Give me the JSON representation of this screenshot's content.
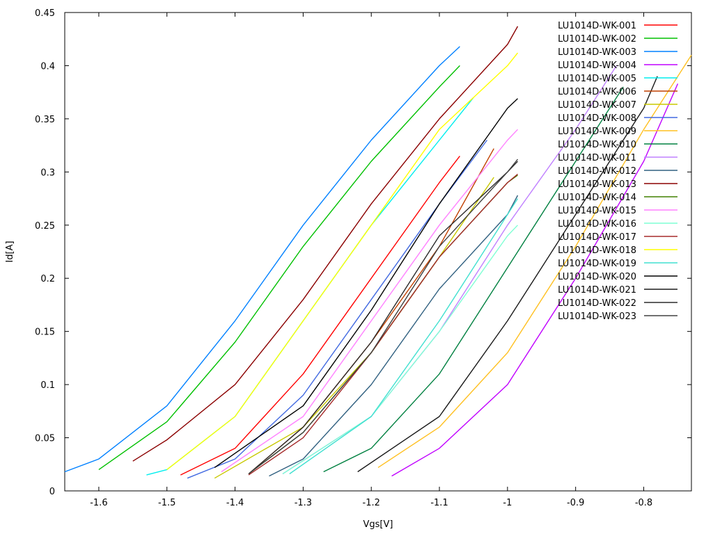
{
  "chart_data": {
    "type": "line",
    "title": "",
    "xlabel": "Vgs[V]",
    "ylabel": "Id[A]",
    "xlim": [
      -1.65,
      -0.73
    ],
    "ylim": [
      0,
      0.45
    ],
    "x_ticks": [
      {
        "value": -1.6,
        "label": "-1.6"
      },
      {
        "value": -1.5,
        "label": "-1.5"
      },
      {
        "value": -1.4,
        "label": "-1.4"
      },
      {
        "value": -1.3,
        "label": "-1.3"
      },
      {
        "value": -1.2,
        "label": "-1.2"
      },
      {
        "value": -1.1,
        "label": "-1.1"
      },
      {
        "value": -1.0,
        "label": "-1"
      },
      {
        "value": -0.9,
        "label": "-0.9"
      },
      {
        "value": -0.8,
        "label": "-0.8"
      }
    ],
    "y_ticks": [
      {
        "value": 0,
        "label": "0"
      },
      {
        "value": 0.05,
        "label": "0.05"
      },
      {
        "value": 0.1,
        "label": "0.1"
      },
      {
        "value": 0.15,
        "label": "0.15"
      },
      {
        "value": 0.2,
        "label": "0.2"
      },
      {
        "value": 0.25,
        "label": "0.25"
      },
      {
        "value": 0.3,
        "label": "0.3"
      },
      {
        "value": 0.35,
        "label": "0.35"
      },
      {
        "value": 0.4,
        "label": "0.4"
      },
      {
        "value": 0.45,
        "label": "0.45"
      }
    ],
    "grid": false,
    "legend_position": "top-right",
    "series": [
      {
        "name": "LU1014D-WK-001",
        "color": "#ff0000",
        "points": [
          [
            -1.48,
            0.015
          ],
          [
            -1.4,
            0.04
          ],
          [
            -1.3,
            0.11
          ],
          [
            -1.2,
            0.2
          ],
          [
            -1.1,
            0.29
          ],
          [
            -1.07,
            0.315
          ]
        ]
      },
      {
        "name": "LU1014D-WK-002",
        "color": "#00c000",
        "points": [
          [
            -1.6,
            0.02
          ],
          [
            -1.5,
            0.065
          ],
          [
            -1.4,
            0.14
          ],
          [
            -1.3,
            0.23
          ],
          [
            -1.2,
            0.31
          ],
          [
            -1.1,
            0.38
          ],
          [
            -1.07,
            0.4
          ]
        ]
      },
      {
        "name": "LU1014D-WK-003",
        "color": "#0080ff",
        "points": [
          [
            -1.65,
            0.018
          ],
          [
            -1.6,
            0.03
          ],
          [
            -1.5,
            0.08
          ],
          [
            -1.4,
            0.16
          ],
          [
            -1.3,
            0.25
          ],
          [
            -1.2,
            0.33
          ],
          [
            -1.1,
            0.4
          ],
          [
            -1.07,
            0.418
          ]
        ]
      },
      {
        "name": "LU1014D-WK-004",
        "color": "#c000ff",
        "points": [
          [
            -1.17,
            0.014
          ],
          [
            -1.1,
            0.04
          ],
          [
            -1.0,
            0.1
          ],
          [
            -0.9,
            0.2
          ],
          [
            -0.8,
            0.31
          ],
          [
            -0.75,
            0.383
          ]
        ]
      },
      {
        "name": "LU1014D-WK-005",
        "color": "#00eeee",
        "points": [
          [
            -1.53,
            0.015
          ],
          [
            -1.5,
            0.02
          ],
          [
            -1.4,
            0.07
          ],
          [
            -1.3,
            0.16
          ],
          [
            -1.2,
            0.25
          ],
          [
            -1.1,
            0.33
          ],
          [
            -1.05,
            0.37
          ]
        ]
      },
      {
        "name": "LU1014D-WK-006",
        "color": "#c04000",
        "points": [
          [
            -1.38,
            0.016
          ],
          [
            -1.3,
            0.06
          ],
          [
            -1.2,
            0.14
          ],
          [
            -1.1,
            0.23
          ],
          [
            -1.02,
            0.322
          ]
        ]
      },
      {
        "name": "LU1014D-WK-007",
        "color": "#c8c800",
        "points": [
          [
            -1.43,
            0.012
          ],
          [
            -1.3,
            0.06
          ],
          [
            -1.2,
            0.13
          ],
          [
            -1.1,
            0.22
          ],
          [
            -1.02,
            0.295
          ]
        ]
      },
      {
        "name": "LU1014D-WK-008",
        "color": "#4169e1",
        "points": [
          [
            -1.47,
            0.012
          ],
          [
            -1.4,
            0.03
          ],
          [
            -1.3,
            0.09
          ],
          [
            -1.2,
            0.18
          ],
          [
            -1.1,
            0.27
          ],
          [
            -1.03,
            0.33
          ]
        ]
      },
      {
        "name": "LU1014D-WK-009",
        "color": "#ffc020",
        "points": [
          [
            -1.19,
            0.022
          ],
          [
            -1.1,
            0.06
          ],
          [
            -1.0,
            0.13
          ],
          [
            -0.9,
            0.23
          ],
          [
            -0.8,
            0.34
          ],
          [
            -0.73,
            0.41
          ]
        ]
      },
      {
        "name": "LU1014D-WK-010",
        "color": "#008040",
        "points": [
          [
            -1.27,
            0.018
          ],
          [
            -1.2,
            0.04
          ],
          [
            -1.1,
            0.11
          ],
          [
            -1.0,
            0.21
          ],
          [
            -0.9,
            0.31
          ],
          [
            -0.83,
            0.38
          ]
        ]
      },
      {
        "name": "LU1014D-WK-011",
        "color": "#c080ff",
        "points": [
          [
            -1.33,
            0.016
          ],
          [
            -1.2,
            0.07
          ],
          [
            -1.1,
            0.15
          ],
          [
            -1.0,
            0.25
          ],
          [
            -0.9,
            0.34
          ],
          [
            -0.84,
            0.4
          ]
        ]
      },
      {
        "name": "LU1014D-WK-012",
        "color": "#306080",
        "points": [
          [
            -1.35,
            0.014
          ],
          [
            -1.3,
            0.03
          ],
          [
            -1.2,
            0.1
          ],
          [
            -1.1,
            0.19
          ],
          [
            -1.0,
            0.26
          ],
          [
            -0.985,
            0.278
          ]
        ]
      },
      {
        "name": "LU1014D-WK-013",
        "color": "#8b0000",
        "points": [
          [
            -1.55,
            0.028
          ],
          [
            -1.5,
            0.048
          ],
          [
            -1.4,
            0.1
          ],
          [
            -1.3,
            0.18
          ],
          [
            -1.2,
            0.27
          ],
          [
            -1.1,
            0.35
          ],
          [
            -1.0,
            0.42
          ],
          [
            -0.985,
            0.437
          ]
        ]
      },
      {
        "name": "LU1014D-WK-014",
        "color": "#408000",
        "points": [
          [
            -1.38,
            0.016
          ],
          [
            -1.3,
            0.055
          ],
          [
            -1.2,
            0.13
          ],
          [
            -1.1,
            0.22
          ],
          [
            -1.0,
            0.29
          ],
          [
            -0.985,
            0.297
          ]
        ]
      },
      {
        "name": "LU1014D-WK-015",
        "color": "#ff80ff",
        "points": [
          [
            -1.42,
            0.018
          ],
          [
            -1.3,
            0.07
          ],
          [
            -1.2,
            0.16
          ],
          [
            -1.1,
            0.25
          ],
          [
            -1.0,
            0.33
          ],
          [
            -0.985,
            0.34
          ]
        ]
      },
      {
        "name": "LU1014D-WK-016",
        "color": "#7fffd4",
        "points": [
          [
            -1.33,
            0.016
          ],
          [
            -1.2,
            0.07
          ],
          [
            -1.1,
            0.15
          ],
          [
            -1.0,
            0.24
          ],
          [
            -0.985,
            0.25
          ]
        ]
      },
      {
        "name": "LU1014D-WK-017",
        "color": "#a52a2a",
        "points": [
          [
            -1.38,
            0.015
          ],
          [
            -1.3,
            0.05
          ],
          [
            -1.2,
            0.13
          ],
          [
            -1.1,
            0.22
          ],
          [
            -1.0,
            0.29
          ],
          [
            -0.985,
            0.298
          ]
        ]
      },
      {
        "name": "LU1014D-WK-018",
        "color": "#ffff00",
        "points": [
          [
            -1.5,
            0.02
          ],
          [
            -1.4,
            0.07
          ],
          [
            -1.3,
            0.16
          ],
          [
            -1.2,
            0.25
          ],
          [
            -1.1,
            0.34
          ],
          [
            -1.0,
            0.4
          ],
          [
            -0.985,
            0.412
          ]
        ]
      },
      {
        "name": "LU1014D-WK-019",
        "color": "#40e0d0",
        "points": [
          [
            -1.32,
            0.016
          ],
          [
            -1.2,
            0.07
          ],
          [
            -1.1,
            0.16
          ],
          [
            -1.0,
            0.26
          ],
          [
            -0.985,
            0.275
          ]
        ]
      },
      {
        "name": "LU1014D-WK-020",
        "color": "#000000",
        "points": [
          [
            -1.43,
            0.022
          ],
          [
            -1.3,
            0.08
          ],
          [
            -1.2,
            0.17
          ],
          [
            -1.1,
            0.27
          ],
          [
            -1.0,
            0.36
          ],
          [
            -0.985,
            0.369
          ]
        ]
      },
      {
        "name": "LU1014D-WK-021",
        "color": "#1a1a1a",
        "points": [
          [
            -1.22,
            0.018
          ],
          [
            -1.1,
            0.07
          ],
          [
            -1.0,
            0.16
          ],
          [
            -0.9,
            0.26
          ],
          [
            -0.8,
            0.36
          ],
          [
            -0.78,
            0.39
          ]
        ]
      },
      {
        "name": "LU1014D-WK-022",
        "color": "#2b2b2b",
        "points": [
          [
            -1.38,
            0.016
          ],
          [
            -1.3,
            0.06
          ],
          [
            -1.2,
            0.14
          ],
          [
            -1.1,
            0.24
          ],
          [
            -1.0,
            0.3
          ],
          [
            -0.985,
            0.31
          ]
        ]
      },
      {
        "name": "LU1014D-WK-023",
        "color": "#404040",
        "points": [
          [
            -1.38,
            0.016
          ],
          [
            -1.3,
            0.055
          ],
          [
            -1.2,
            0.13
          ],
          [
            -1.1,
            0.23
          ],
          [
            -1.0,
            0.3
          ],
          [
            -0.985,
            0.312
          ]
        ]
      }
    ]
  }
}
